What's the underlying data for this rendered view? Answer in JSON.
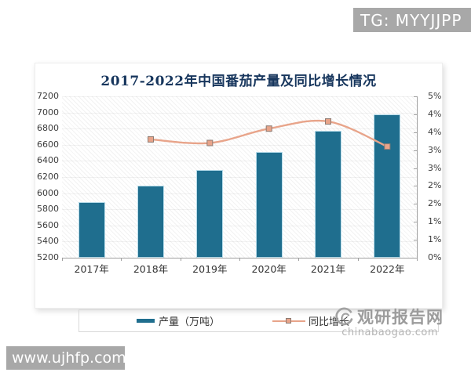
{
  "overlays": {
    "tg_badge": "TG: MYYJJPP",
    "site_badge": "www.ujhfp.com"
  },
  "watermark": {
    "name": "观研报告网",
    "domain": "chinabaogao.com"
  },
  "chart_data": {
    "type": "bar+line",
    "title": "2017-2022年中国番茄产量及同比增长情况",
    "categories": [
      "2017年",
      "2018年",
      "2019年",
      "2020年",
      "2021年",
      "2022年"
    ],
    "series": [
      {
        "name": "产量（万吨）",
        "type": "bar",
        "axis": "left",
        "values": [
          5890,
          6090,
          6290,
          6515,
          6770,
          6980
        ],
        "color": "#1f6e8e"
      },
      {
        "name": "同比增长",
        "type": "line",
        "axis": "right",
        "x_categories": [
          "2018年",
          "2019年",
          "2020年",
          "2021年",
          "2022年"
        ],
        "values": [
          3.3,
          3.2,
          3.6,
          3.8,
          3.1
        ],
        "unit": "%",
        "color": "#e8a48a",
        "marker_border": "#8d7b72"
      }
    ],
    "left_axis": {
      "min": 5200,
      "max": 7200,
      "step": 200,
      "tick_labels_top_to_bottom": [
        "7200",
        "7000",
        "6800",
        "6600",
        "6400",
        "6200",
        "6000",
        "5800",
        "5600",
        "5400",
        "5200"
      ]
    },
    "right_axis": {
      "scale_max": 4.5,
      "scale_min": 0,
      "tick_labels_top_to_bottom": [
        "5%",
        "4%",
        "4%",
        "3%",
        "3%",
        "2%",
        "2%",
        "1%",
        "1%",
        "0%"
      ]
    },
    "legend": [
      {
        "label": "产量（万吨）",
        "swatch": "bar"
      },
      {
        "label": "同比增长",
        "swatch": "line-marker"
      }
    ],
    "grid": "horizontal",
    "legend_position": "bottom"
  }
}
